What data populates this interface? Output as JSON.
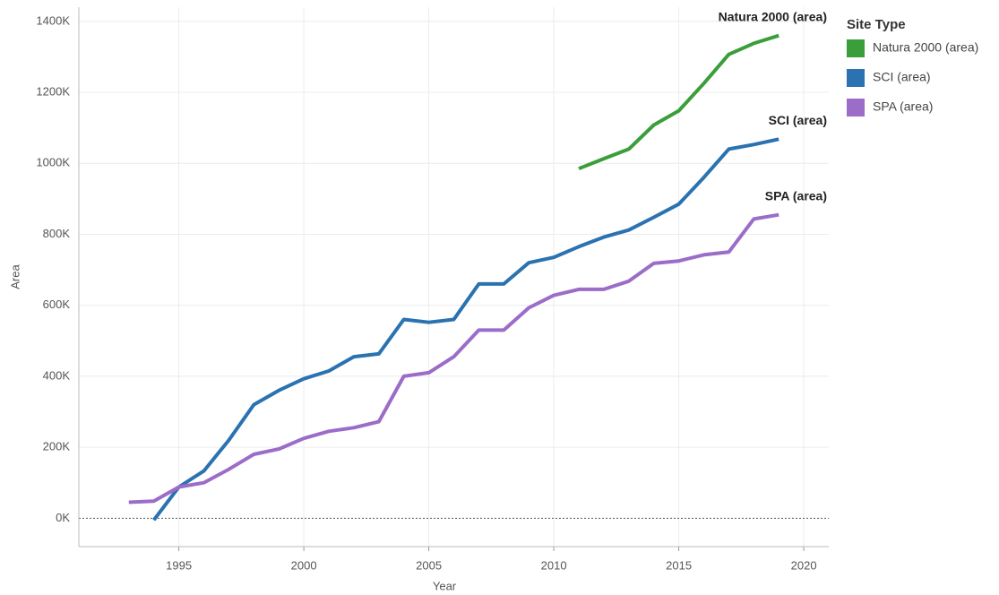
{
  "chart_data": {
    "type": "line",
    "x_label": "Year",
    "y_label": "Area",
    "legend_title": "Site Type",
    "x": [
      1993,
      1994,
      1995,
      1996,
      1997,
      1998,
      1999,
      2000,
      2001,
      2002,
      2003,
      2004,
      2005,
      2006,
      2007,
      2008,
      2009,
      2010,
      2011,
      2012,
      2013,
      2014,
      2015,
      2016,
      2017,
      2018,
      2019
    ],
    "series": [
      {
        "name": "Natura 2000 (area)",
        "color": "#3a9e3a",
        "values": [
          null,
          null,
          null,
          null,
          null,
          null,
          null,
          null,
          null,
          null,
          null,
          null,
          null,
          null,
          null,
          null,
          null,
          null,
          985000,
          1013000,
          1040000,
          1108000,
          1148000,
          1225000,
          1307000,
          1338000,
          1360000
        ]
      },
      {
        "name": "SCI (area)",
        "color": "#2a72b0",
        "values": [
          null,
          -5000,
          88000,
          133000,
          220000,
          320000,
          360000,
          393000,
          415000,
          455000,
          463000,
          560000,
          552000,
          560000,
          660000,
          660000,
          720000,
          735000,
          765000,
          792000,
          812000,
          848000,
          885000,
          960000,
          1040000,
          1053000,
          1068000
        ]
      },
      {
        "name": "SPA (area)",
        "color": "#9b6cc8",
        "values": [
          45000,
          48000,
          88000,
          100000,
          138000,
          180000,
          195000,
          225000,
          245000,
          255000,
          272000,
          400000,
          410000,
          455000,
          530000,
          530000,
          593000,
          628000,
          645000,
          645000,
          668000,
          718000,
          725000,
          742000,
          750000,
          843000,
          855000
        ]
      }
    ],
    "xlim": [
      1991,
      2021
    ],
    "xticks": [
      1995,
      2000,
      2005,
      2010,
      2015,
      2020
    ],
    "ylim": [
      -80000,
      1440000
    ],
    "yticks": [
      {
        "value": 0,
        "label": "0K"
      },
      {
        "value": 200000,
        "label": "200K"
      },
      {
        "value": 400000,
        "label": "400K"
      },
      {
        "value": 600000,
        "label": "600K"
      },
      {
        "value": 800000,
        "label": "800K"
      },
      {
        "value": 1000000,
        "label": "1000K"
      },
      {
        "value": 1200000,
        "label": "1200K"
      },
      {
        "value": 1400000,
        "label": "1400K"
      }
    ],
    "grid": true
  }
}
